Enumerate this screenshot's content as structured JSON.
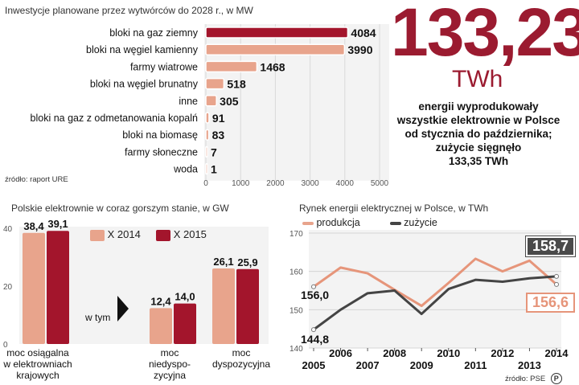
{
  "colors": {
    "dark_red": "#a3152c",
    "salmon": "#e8a48c",
    "dark_gray": "#444444",
    "light_salmon": "#e6957a",
    "bg_panel": "#f3f3f3"
  },
  "headline": {
    "number": "133,23",
    "unit": "TWh",
    "description_lines": [
      "energii wyprodukowały",
      "wszystkie elektrownie w Polsce",
      "od stycznia do października;",
      "zużycie sięgnęło",
      "133,35 TWh"
    ]
  },
  "chart_data": [
    {
      "type": "bar",
      "orientation": "horizontal",
      "title": "Inwestycje planowane przez wytwórców do 2028 r., w MW",
      "categories": [
        "bloki na gaz ziemny",
        "bloki na węgiel kamienny",
        "farmy wiatrowe",
        "bloki na węgiel brunatny",
        "inne",
        "bloki na gaz z odmetanowania kopalń",
        "bloki na biomasę",
        "farmy słoneczne",
        "woda"
      ],
      "values": [
        4084,
        3990,
        1468,
        518,
        305,
        91,
        83,
        7,
        1
      ],
      "value_labels": [
        "4084",
        "3990",
        "1468",
        "518",
        "305",
        "91",
        "83",
        "7",
        "1"
      ],
      "xlim": [
        0,
        5000
      ],
      "xticks": [
        "0",
        "1000",
        "2000",
        "3000",
        "4000",
        "5000"
      ],
      "source": "źródło: raport URE"
    },
    {
      "type": "bar",
      "title": "Polskie elektrownie w coraz gorszym stanie, w GW",
      "categories": [
        "moc osiągalna w elektrowniach krajowych",
        "moc niedyspo- zycyjna",
        "moc dyspozycyjna"
      ],
      "category_lines": [
        [
          "moc osiągalna",
          "w elektrowniach",
          "krajowych"
        ],
        [
          "moc",
          "niedyspo-",
          "zycyjna"
        ],
        [
          "moc",
          "dyspozycyjna"
        ]
      ],
      "series": [
        {
          "name": "X 2014",
          "values": [
            38.4,
            12.4,
            26.1
          ],
          "labels": [
            "38,4",
            "12,4",
            "26,1"
          ]
        },
        {
          "name": "X 2015",
          "values": [
            39.1,
            14.0,
            25.9
          ],
          "labels": [
            "39,1",
            "14,0",
            "25,9"
          ]
        }
      ],
      "ylim": [
        0,
        40
      ],
      "yticks": [
        "0",
        "20",
        "40"
      ],
      "annotation": "w tym"
    },
    {
      "type": "line",
      "title": "Rynek energii elektrycznej w Polsce, w TWh",
      "x": [
        2005,
        2006,
        2007,
        2008,
        2009,
        2010,
        2011,
        2012,
        2013,
        2014
      ],
      "xticks_top": [
        "2006",
        "2008",
        "2010",
        "2012",
        "2014"
      ],
      "xticks_bottom": [
        "2005",
        "2007",
        "2009",
        "2011",
        "2013"
      ],
      "series": [
        {
          "name": "produkcja",
          "values": [
            156.0,
            161.0,
            159.5,
            155.2,
            151.0,
            157.0,
            163.3,
            160.0,
            162.8,
            156.6
          ]
        },
        {
          "name": "zużycie",
          "values": [
            144.8,
            150.0,
            154.3,
            155.0,
            148.9,
            155.4,
            157.8,
            157.3,
            158.2,
            158.7
          ]
        }
      ],
      "labels": {
        "start_produkcja": "156,0",
        "start_zuzycie": "144,8",
        "end_zuzycie": "158,7",
        "end_produkcja": "156,6"
      },
      "ylim": [
        140,
        170
      ],
      "yticks": [
        "140",
        "150",
        "160",
        "170"
      ],
      "source": "źródło: PSE"
    }
  ]
}
